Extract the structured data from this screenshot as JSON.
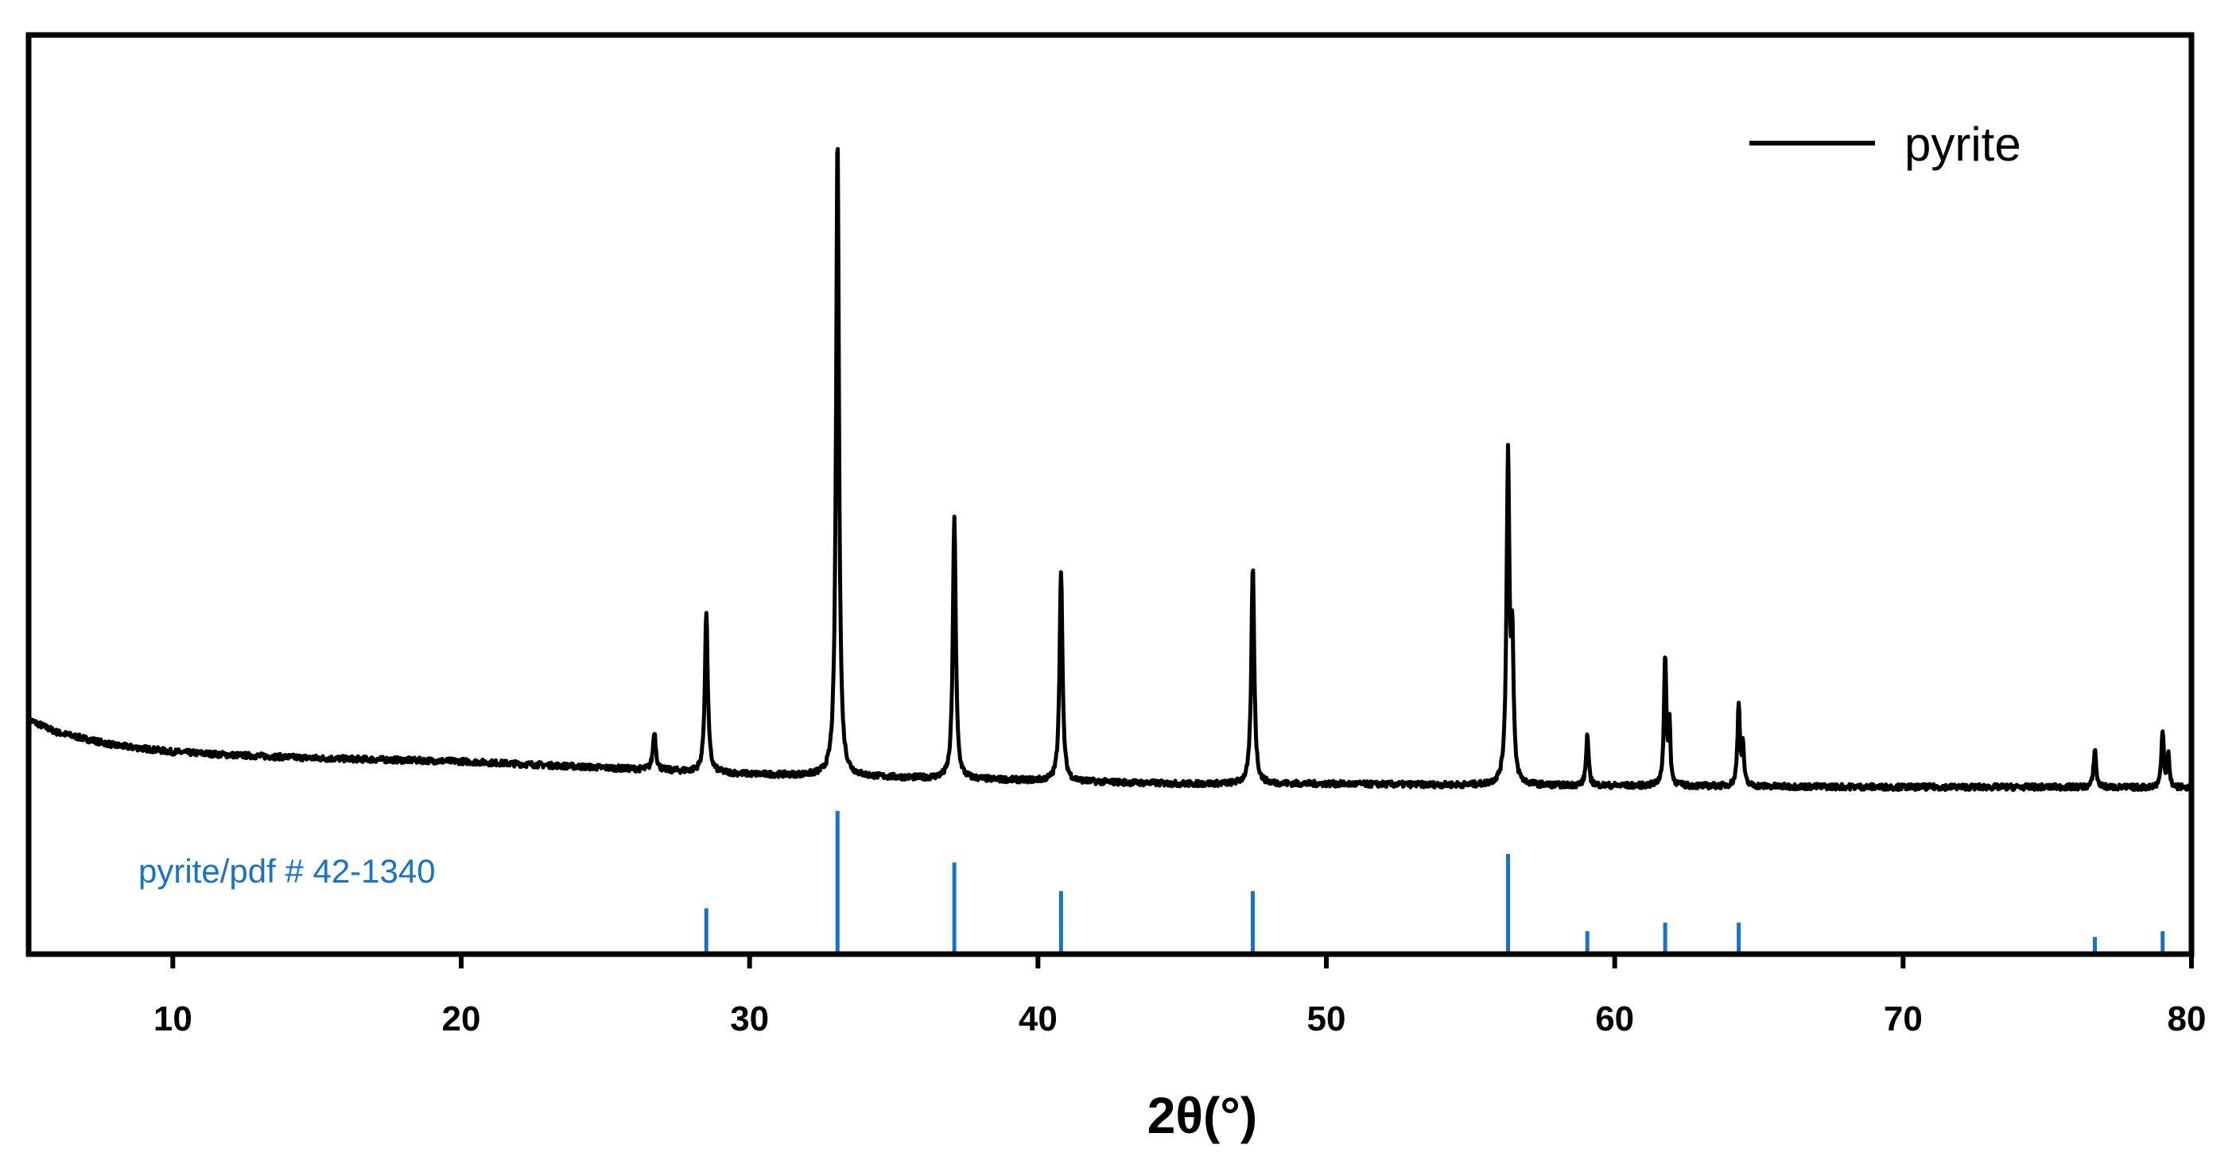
{
  "chart_data": {
    "type": "line",
    "xlabel": "2θ(°)",
    "ylabel": "",
    "xlim": [
      5,
      80
    ],
    "grid": false,
    "x_ticks": [
      "10",
      "20",
      "30",
      "40",
      "50",
      "60",
      "70",
      "80"
    ],
    "legend": {
      "placement": "top-right",
      "entries": [
        "pyrite"
      ]
    },
    "series": [
      {
        "name": "pyrite",
        "color": "#000000",
        "baseline": [
          [
            5,
            12
          ],
          [
            6,
            10
          ],
          [
            7,
            9
          ],
          [
            8,
            8
          ],
          [
            10,
            7
          ],
          [
            12,
            6.5
          ],
          [
            15,
            6
          ],
          [
            20,
            5.5
          ],
          [
            25,
            4.5
          ],
          [
            30,
            3.5
          ],
          [
            35,
            3
          ],
          [
            40,
            2.5
          ],
          [
            45,
            2
          ],
          [
            50,
            2
          ],
          [
            55,
            1.8
          ],
          [
            60,
            1.7
          ],
          [
            65,
            1.6
          ],
          [
            70,
            1.5
          ],
          [
            75,
            1.5
          ],
          [
            80,
            1.4
          ]
        ],
        "peaks": [
          {
            "x": 26.7,
            "height": 6,
            "width": 0.12
          },
          {
            "x": 28.5,
            "height": 25,
            "width": 0.12
          },
          {
            "x": 33.05,
            "height": 100,
            "width": 0.12
          },
          {
            "x": 37.1,
            "height": 41,
            "width": 0.12
          },
          {
            "x": 40.8,
            "height": 33,
            "width": 0.12
          },
          {
            "x": 47.45,
            "height": 34,
            "width": 0.12
          },
          {
            "x": 56.3,
            "height": 51,
            "width": 0.12
          },
          {
            "x": 56.45,
            "height": 20,
            "width": 0.1
          },
          {
            "x": 59.05,
            "height": 8,
            "width": 0.1
          },
          {
            "x": 61.75,
            "height": 20,
            "width": 0.1
          },
          {
            "x": 61.9,
            "height": 9,
            "width": 0.08
          },
          {
            "x": 64.3,
            "height": 13,
            "width": 0.1
          },
          {
            "x": 64.45,
            "height": 6,
            "width": 0.08
          },
          {
            "x": 76.65,
            "height": 6,
            "width": 0.1
          },
          {
            "x": 79.0,
            "height": 9,
            "width": 0.1
          },
          {
            "x": 79.2,
            "height": 5,
            "width": 0.08
          }
        ]
      }
    ],
    "reference": {
      "label": "pyrite/pdf # 42-1340",
      "color": "#1a72c0",
      "lines": [
        {
          "x": 28.5,
          "intensity": 32
        },
        {
          "x": 33.05,
          "intensity": 100
        },
        {
          "x": 37.1,
          "intensity": 64
        },
        {
          "x": 40.8,
          "intensity": 44
        },
        {
          "x": 47.45,
          "intensity": 44
        },
        {
          "x": 56.3,
          "intensity": 70
        },
        {
          "x": 59.05,
          "intensity": 16
        },
        {
          "x": 61.75,
          "intensity": 22
        },
        {
          "x": 64.3,
          "intensity": 22
        },
        {
          "x": 76.65,
          "intensity": 12
        },
        {
          "x": 79.0,
          "intensity": 16
        }
      ]
    }
  }
}
